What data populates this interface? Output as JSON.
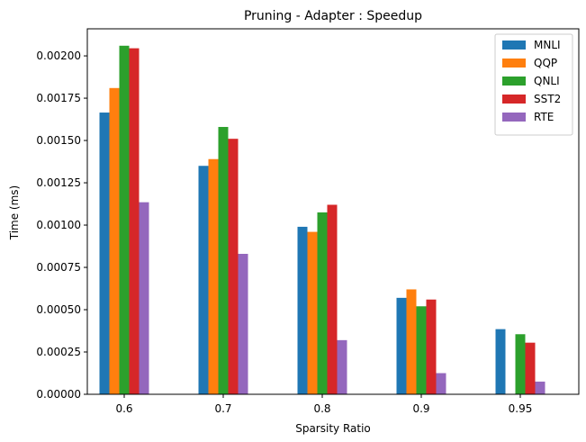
{
  "chart_data": {
    "type": "bar",
    "title": "Pruning - Adapter : Speedup",
    "xlabel": "Sparsity Ratio",
    "ylabel": "Time (ms)",
    "categories": [
      "0.6",
      "0.7",
      "0.8",
      "0.9",
      "0.95"
    ],
    "ylim": [
      0,
      0.00216
    ],
    "yticks": [
      "0.00000",
      "0.00025",
      "0.00050",
      "0.00075",
      "0.00100",
      "0.00125",
      "0.00150",
      "0.00175",
      "0.00200"
    ],
    "legend_position": "top-right",
    "grid": false,
    "series": [
      {
        "name": "MNLI",
        "color": "#1f77b4",
        "values": [
          0.001665,
          0.00135,
          0.00099,
          0.00057,
          0.000385
        ]
      },
      {
        "name": "QQP",
        "color": "#ff7f0e",
        "values": [
          0.00181,
          0.00139,
          0.00096,
          0.00062,
          0.0
        ]
      },
      {
        "name": "QNLI",
        "color": "#2ca02c",
        "values": [
          0.00206,
          0.00158,
          0.001075,
          0.00052,
          0.000355
        ]
      },
      {
        "name": "SST2",
        "color": "#d62728",
        "values": [
          0.002045,
          0.00151,
          0.00112,
          0.00056,
          0.000305
        ]
      },
      {
        "name": "RTE",
        "color": "#9467bd",
        "values": [
          0.001135,
          0.00083,
          0.00032,
          0.000125,
          7.5e-05
        ]
      }
    ]
  }
}
